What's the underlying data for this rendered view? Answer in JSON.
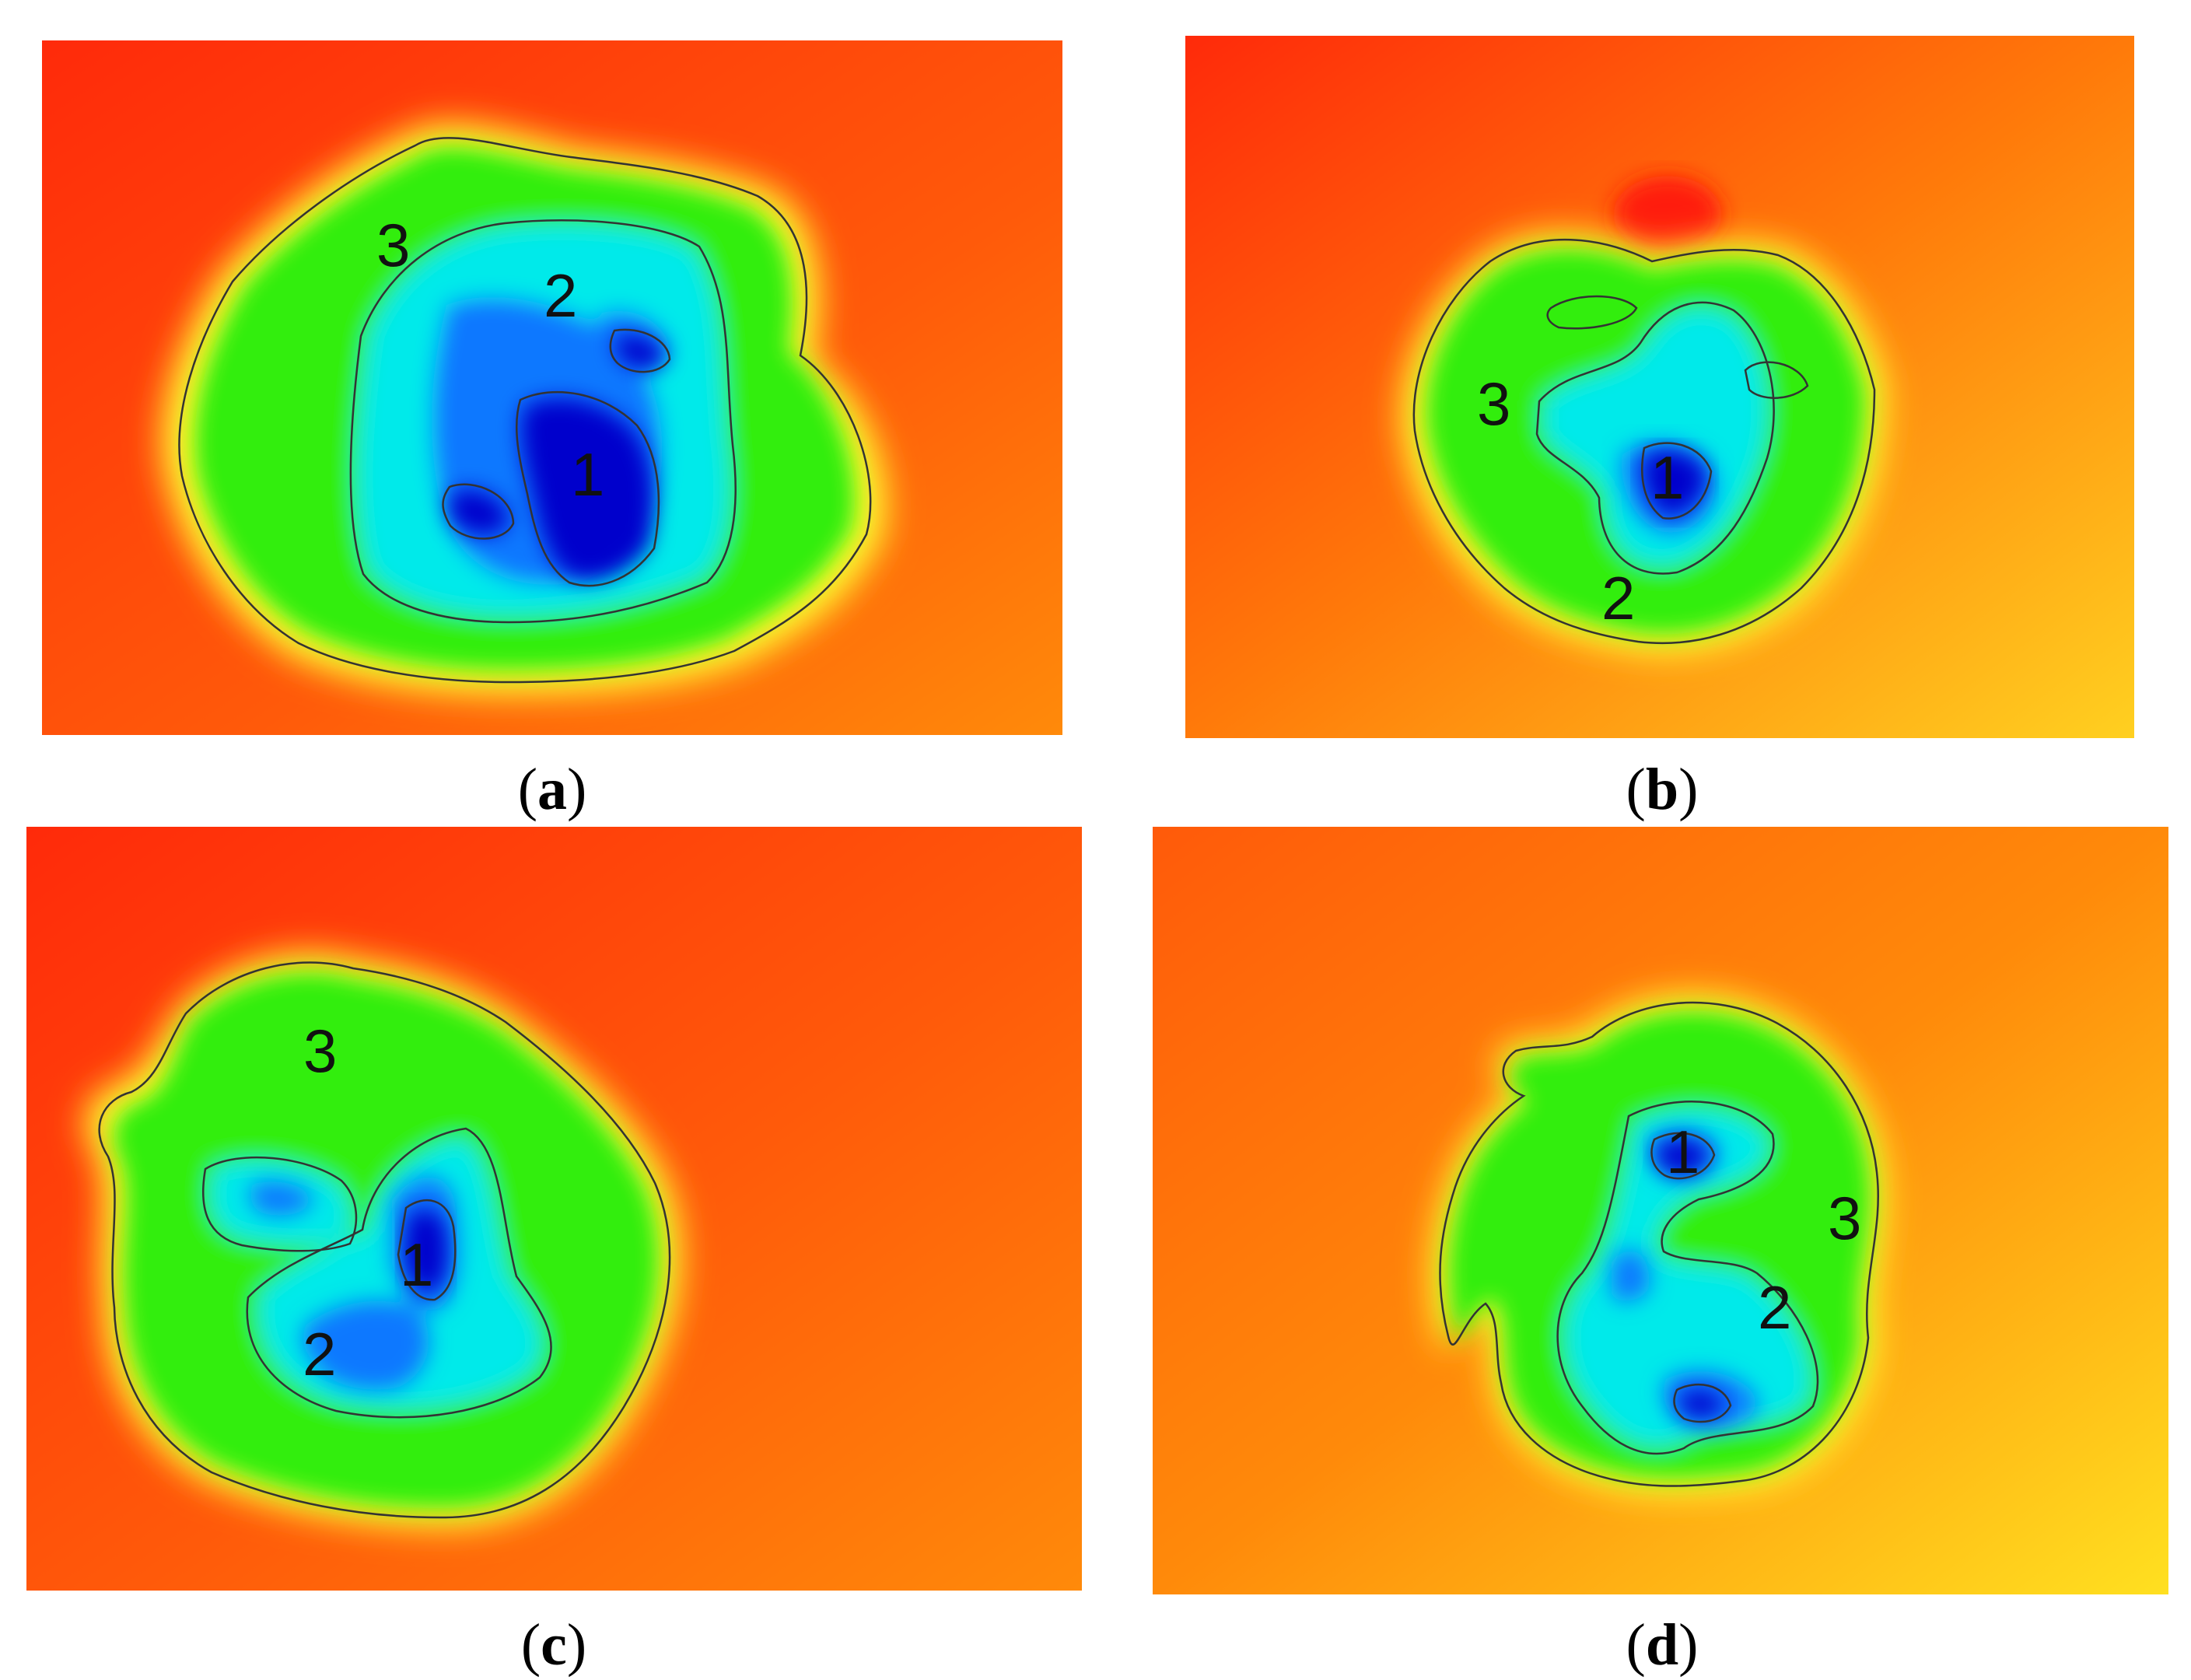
{
  "panels": [
    {
      "id": "a",
      "caption_letter": "a",
      "labels": [
        "3",
        "2",
        "1"
      ]
    },
    {
      "id": "b",
      "caption_letter": "b",
      "labels": [
        "3",
        "1",
        "2"
      ]
    },
    {
      "id": "c",
      "caption_letter": "c",
      "labels": [
        "3",
        "1",
        "2"
      ]
    },
    {
      "id": "d",
      "caption_letter": "d",
      "labels": [
        "1",
        "3",
        "2"
      ]
    }
  ],
  "caption_open": "(",
  "caption_close": ")",
  "colors": {
    "red": "#ff2a0a",
    "orange": "#ff7a0a",
    "yellow": "#ffff20",
    "green": "#33ee10",
    "cyan": "#00f0f0",
    "blue": "#0066ff",
    "dark_blue": "#0000cc",
    "contour": "#333333"
  }
}
